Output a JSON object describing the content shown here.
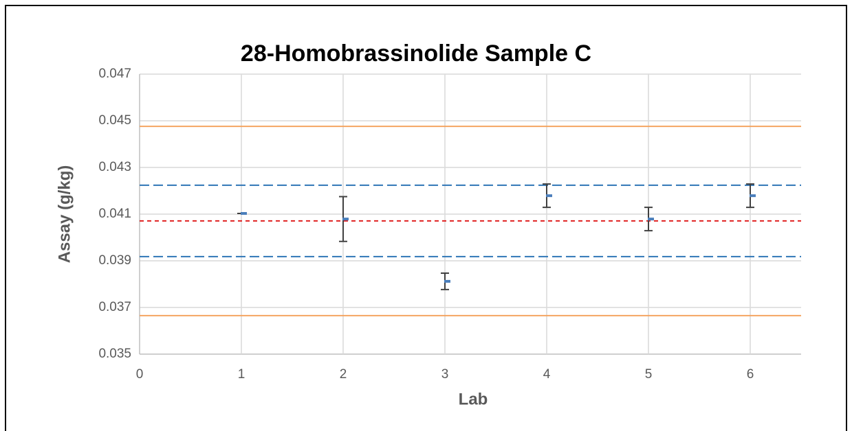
{
  "chart_data": {
    "type": "scatter",
    "title": "28-Homobrassinolide Sample C",
    "x_label": "Lab",
    "y_label": "Assay (g/kg)",
    "series": [
      {
        "color": "#4a7ebb",
        "error_color": "#404040",
        "x": [
          1,
          2,
          3,
          4,
          5,
          6
        ],
        "values": [
          0.04103,
          0.04079,
          0.03812,
          0.04179,
          0.04079,
          0.04179
        ],
        "errors": [
          0,
          0.00096,
          0.00035,
          0.0005,
          0.0005,
          0.0005
        ]
      }
    ],
    "reference_lines": [
      {
        "value": 0.04476,
        "color": "#f4a460",
        "style": "solid"
      },
      {
        "value": 0.04224,
        "color": "#2e75b6",
        "style": "dashed"
      },
      {
        "value": 0.04071,
        "color": "#e02020",
        "style": "dotted"
      },
      {
        "value": 0.03918,
        "color": "#2e75b6",
        "style": "dashed"
      },
      {
        "value": 0.03665,
        "color": "#f4a460",
        "style": "solid"
      }
    ],
    "xlim": [
      0,
      6.5
    ],
    "xticks": [
      0,
      1,
      2,
      3,
      4,
      5,
      6
    ],
    "ylim": [
      0.035,
      0.047
    ],
    "yticks": [
      0.035,
      0.037,
      0.039,
      0.041,
      0.043,
      0.045,
      0.047
    ],
    "grid": true
  }
}
